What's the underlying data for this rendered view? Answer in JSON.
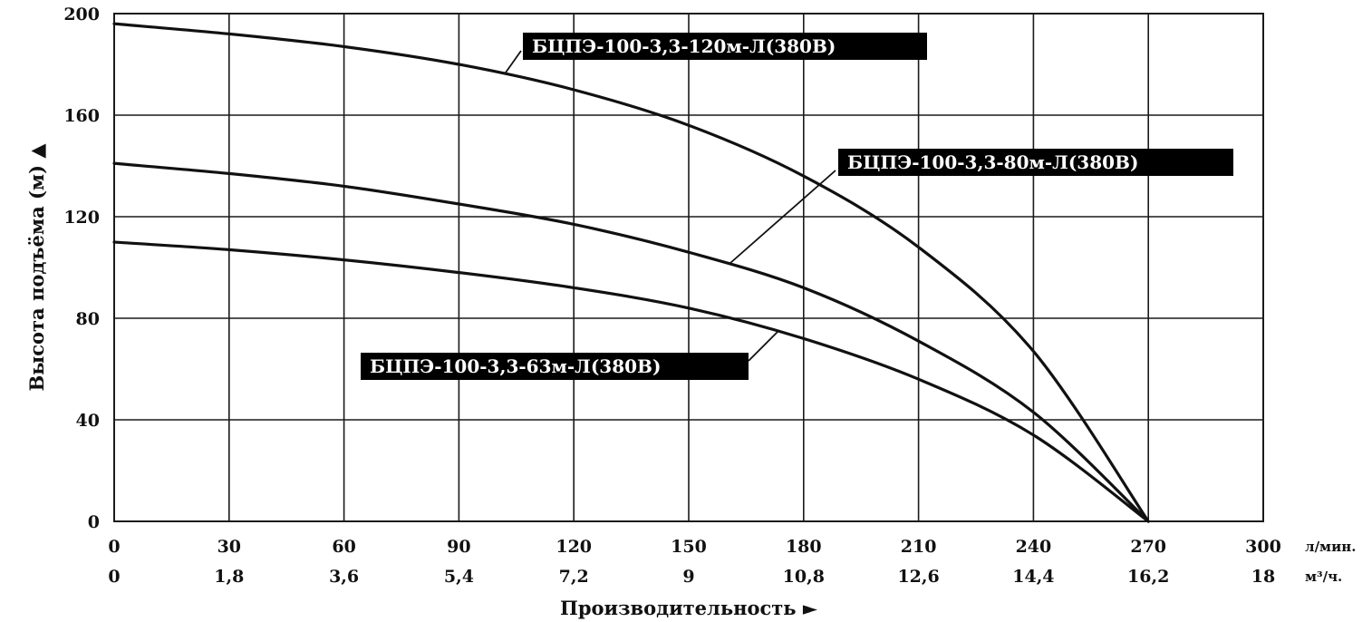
{
  "chart_data": {
    "type": "line",
    "ylabel": "Высота подъёма (м) ▲",
    "xlabel": "Производительность ►",
    "ylim": [
      0,
      200
    ],
    "xlim": [
      0,
      300
    ],
    "y_ticks": [
      "0",
      "40",
      "80",
      "120",
      "160",
      "200"
    ],
    "x_ticks_lmin": [
      "0",
      "30",
      "60",
      "90",
      "120",
      "150",
      "180",
      "210",
      "240",
      "270",
      "300"
    ],
    "x_ticks_m3h": [
      "0",
      "1,8",
      "3,6",
      "5,4",
      "7,2",
      "9",
      "10,8",
      "12,6",
      "14,4",
      "16,2",
      "18"
    ],
    "x_unit_lmin": "л/мин.",
    "x_unit_m3h": "м³/ч.",
    "grid": true,
    "series": [
      {
        "name": "БЦПЭ-100-3,3-120м-Л(380В)",
        "x": [
          0,
          30,
          60,
          90,
          120,
          150,
          180,
          210,
          240,
          270
        ],
        "y": [
          196,
          192,
          187,
          180,
          170,
          156,
          136,
          108,
          67,
          0
        ]
      },
      {
        "name": "БЦПЭ-100-3,3-80м-Л(380В)",
        "x": [
          0,
          30,
          60,
          90,
          120,
          150,
          180,
          210,
          240,
          270
        ],
        "y": [
          141,
          137,
          132,
          125,
          117,
          106,
          92,
          71,
          43,
          0
        ]
      },
      {
        "name": "БЦПЭ-100-3,3-63м-Л(380В)",
        "x": [
          0,
          30,
          60,
          90,
          120,
          150,
          180,
          210,
          240,
          270
        ],
        "y": [
          110,
          107,
          103,
          98,
          92,
          84,
          72,
          56,
          34,
          0
        ]
      }
    ]
  }
}
